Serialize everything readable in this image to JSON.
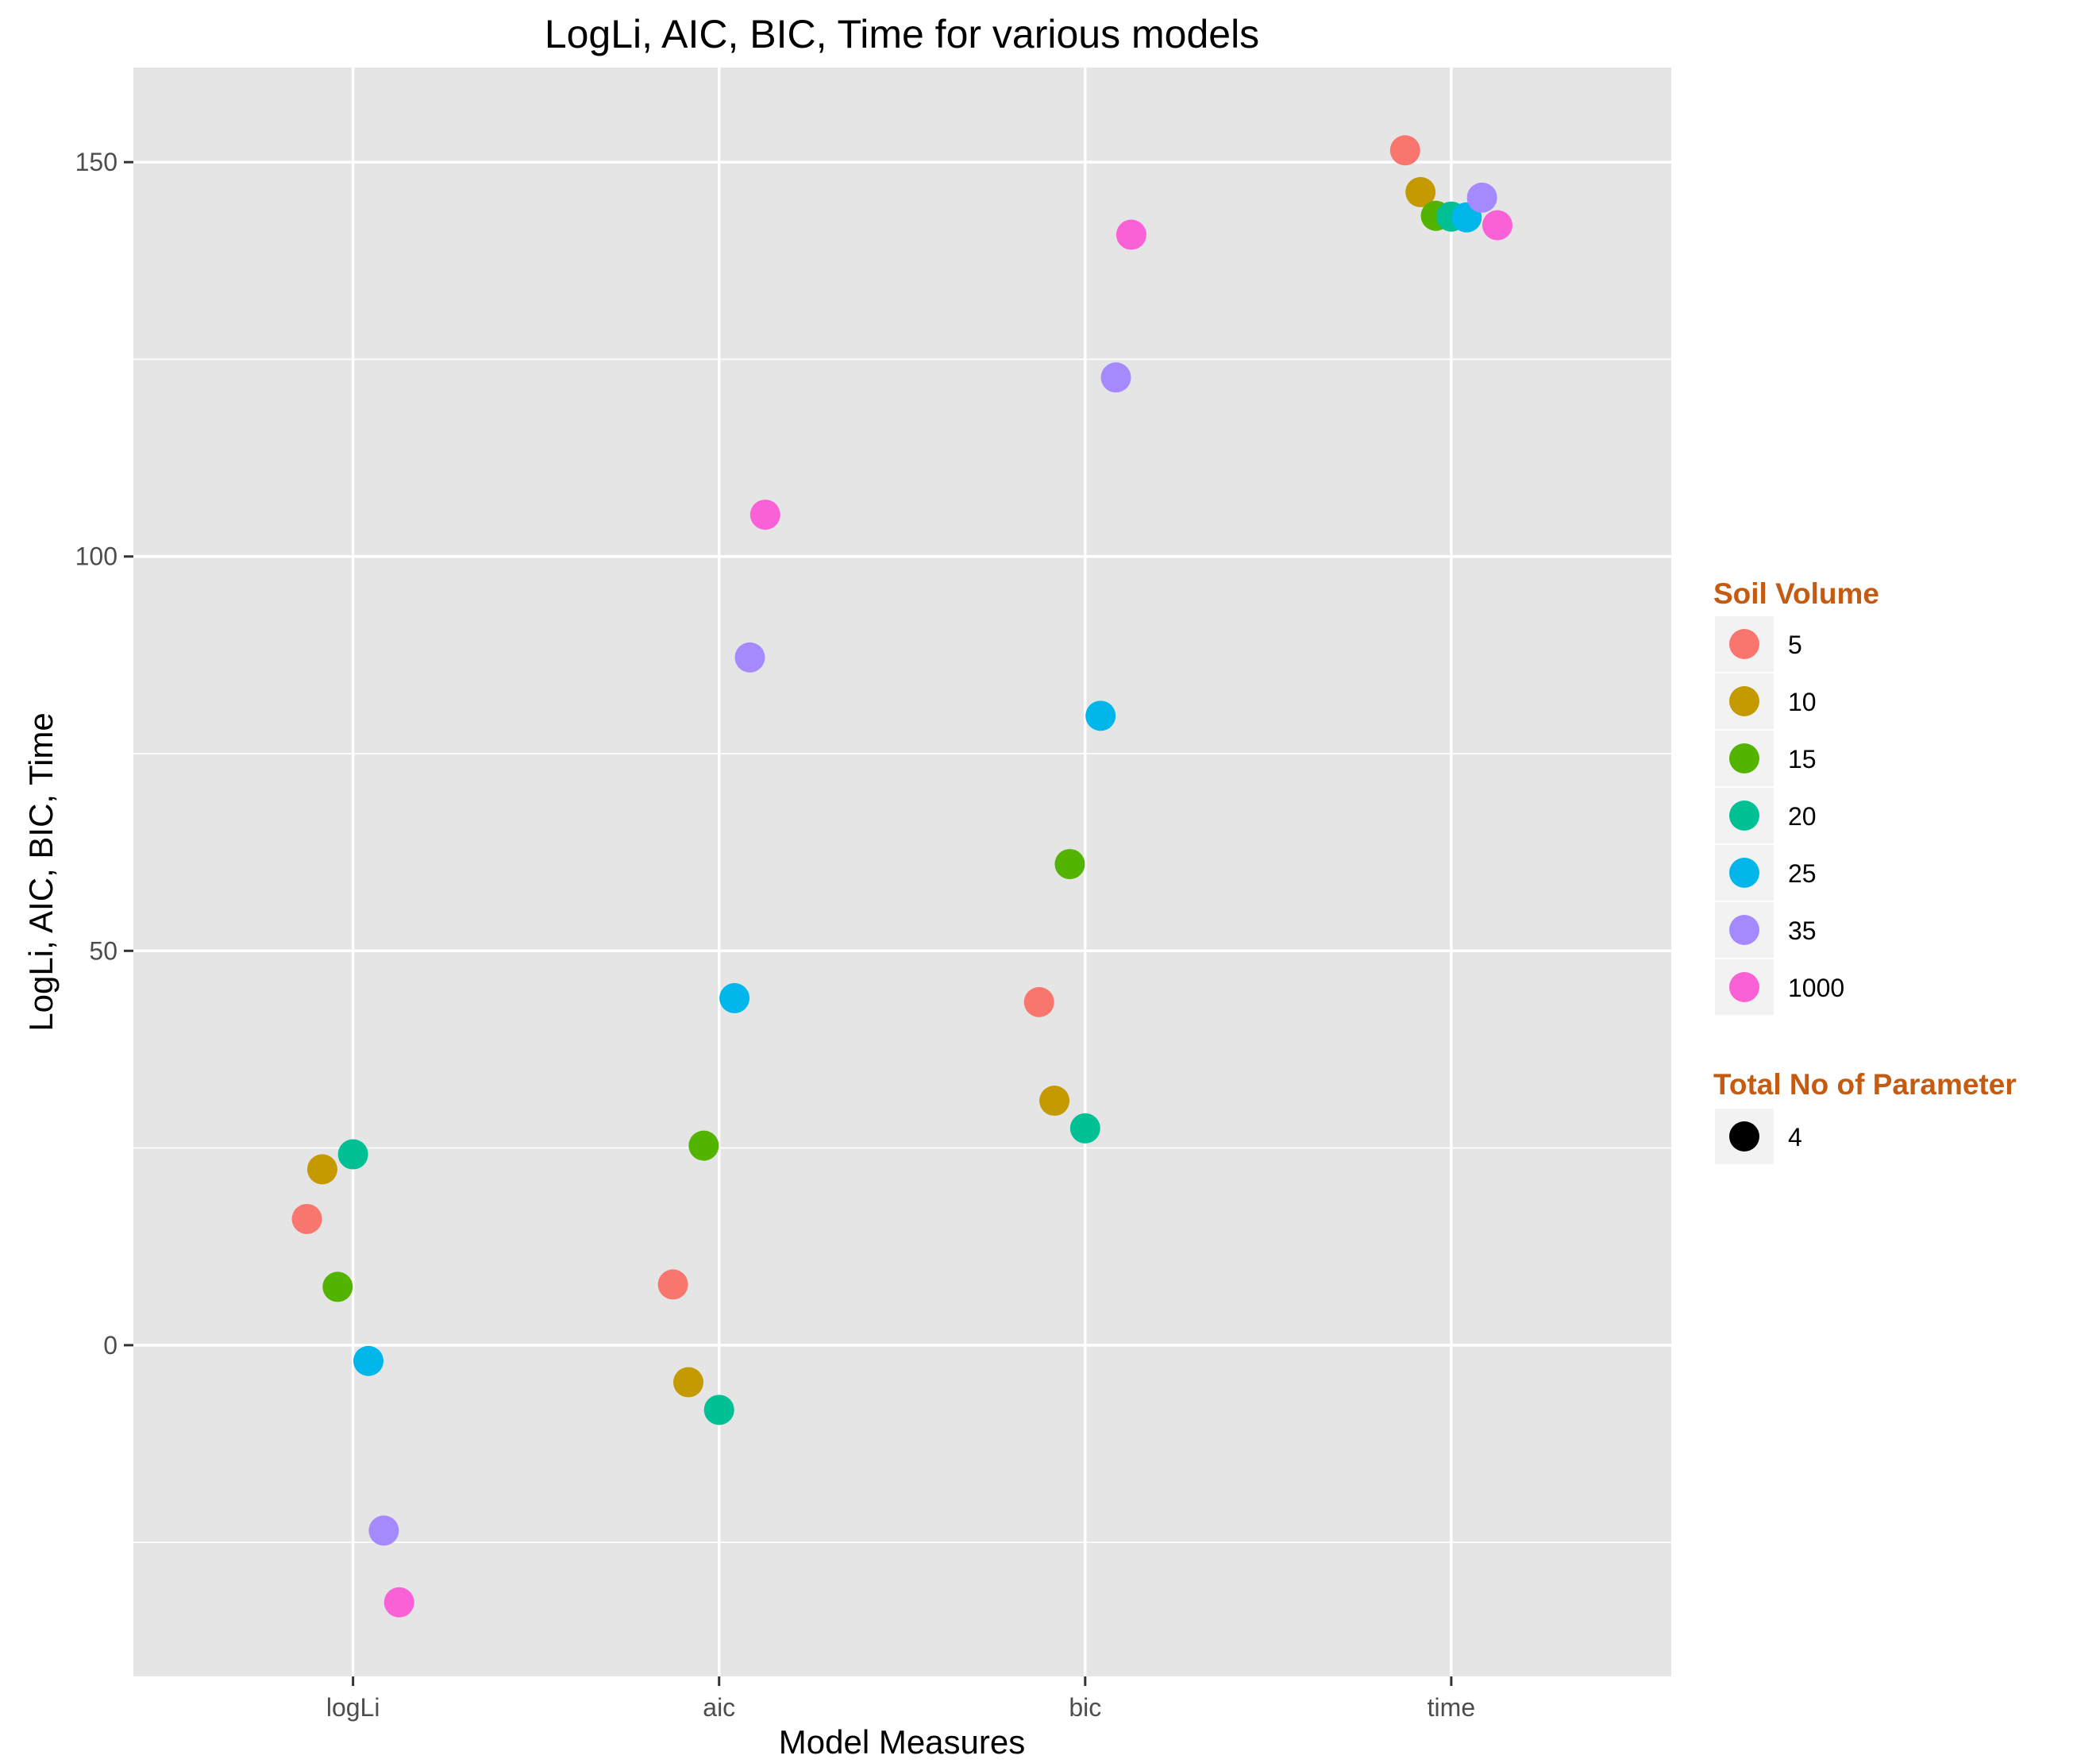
{
  "chart_data": {
    "type": "scatter",
    "title": "LogLi, AIC, BIC, Time for various models",
    "xlabel": "Model Measures",
    "ylabel": "LogLi, AIC, BIC, Time",
    "categories": [
      "logLi",
      "aic",
      "bic",
      "time"
    ],
    "ylim": [
      -42,
      162
    ],
    "yticks": [
      0,
      50,
      100,
      150
    ],
    "grid": true,
    "legend_position": "right",
    "colors": {
      "panel_bg": "#e5e5e5",
      "grid": "#ffffff",
      "legend_title": "#c55a11",
      "legend_key_bg": "#f2f2f2",
      "shape_point": "#000000"
    },
    "color_legend": {
      "title": "Soil Volume",
      "items": [
        {
          "label": "5",
          "color": "#f8766d"
        },
        {
          "label": "10",
          "color": "#c49a00"
        },
        {
          "label": "15",
          "color": "#53b400"
        },
        {
          "label": "20",
          "color": "#00c094"
        },
        {
          "label": "25",
          "color": "#00b6eb"
        },
        {
          "label": "35",
          "color": "#a58aff"
        },
        {
          "label": "1000",
          "color": "#fb61d7"
        }
      ]
    },
    "shape_legend": {
      "title": "Total No of Parameter",
      "items": [
        {
          "label": "4",
          "shape": "circle"
        }
      ]
    },
    "series": [
      {
        "name": "5",
        "values": [
          16.0,
          7.7,
          43.5,
          151.5
        ]
      },
      {
        "name": "10",
        "values": [
          22.3,
          -4.7,
          31.0,
          146.2
        ]
      },
      {
        "name": "15",
        "values": [
          7.4,
          25.3,
          61.0,
          143.2
        ]
      },
      {
        "name": "20",
        "values": [
          24.2,
          -8.2,
          27.5,
          143.1
        ]
      },
      {
        "name": "25",
        "values": [
          -2.0,
          44.0,
          79.8,
          143.0
        ]
      },
      {
        "name": "35",
        "values": [
          -23.5,
          87.2,
          122.7,
          145.5
        ]
      },
      {
        "name": "1000",
        "values": [
          -32.6,
          105.3,
          140.8,
          142.0
        ]
      }
    ]
  }
}
